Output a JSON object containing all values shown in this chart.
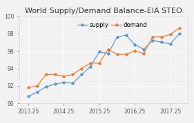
{
  "title": "World Supply/Demand Balance-EIA STEO",
  "supply_x": [
    2013.25,
    2013.5,
    2013.75,
    2014.0,
    2014.25,
    2014.5,
    2014.75,
    2015.0,
    2015.25,
    2015.5,
    2015.75,
    2016.0,
    2016.25,
    2016.5,
    2016.75,
    2017.0,
    2017.25,
    2017.5
  ],
  "supply_y": [
    90.8,
    91.3,
    91.9,
    92.2,
    92.4,
    92.3,
    93.3,
    94.2,
    95.9,
    95.7,
    97.6,
    97.8,
    96.7,
    96.2,
    97.2,
    97.0,
    96.8,
    98.0
  ],
  "demand_x": [
    2013.25,
    2013.5,
    2013.75,
    2014.0,
    2014.25,
    2014.5,
    2014.75,
    2015.0,
    2015.25,
    2015.5,
    2015.75,
    2016.0,
    2016.25,
    2016.5,
    2016.75,
    2017.0,
    2017.25,
    2017.5
  ],
  "demand_y": [
    91.8,
    92.0,
    93.3,
    93.3,
    93.1,
    93.3,
    94.0,
    94.6,
    94.6,
    96.2,
    95.6,
    95.6,
    96.0,
    95.7,
    97.6,
    97.6,
    97.9,
    98.6
  ],
  "supply_color": "#5b9bd5",
  "demand_color": "#ed7d31",
  "xlim": [
    2013.0,
    2017.75
  ],
  "ylim": [
    90,
    100
  ],
  "xticks": [
    2013.25,
    2014.25,
    2015.25,
    2016.25,
    2017.25
  ],
  "yticks": [
    90,
    92,
    94,
    96,
    98,
    100
  ],
  "legend_supply": "supply",
  "legend_demand": "demand",
  "background_color": "#f2f2f2",
  "plot_bg_color": "#f2f2f2",
  "grid_color": "#ffffff",
  "title_fontsize": 8,
  "label_fontsize": 6,
  "tick_fontsize": 5.5,
  "marker_size": 2.2,
  "line_width": 0.9
}
